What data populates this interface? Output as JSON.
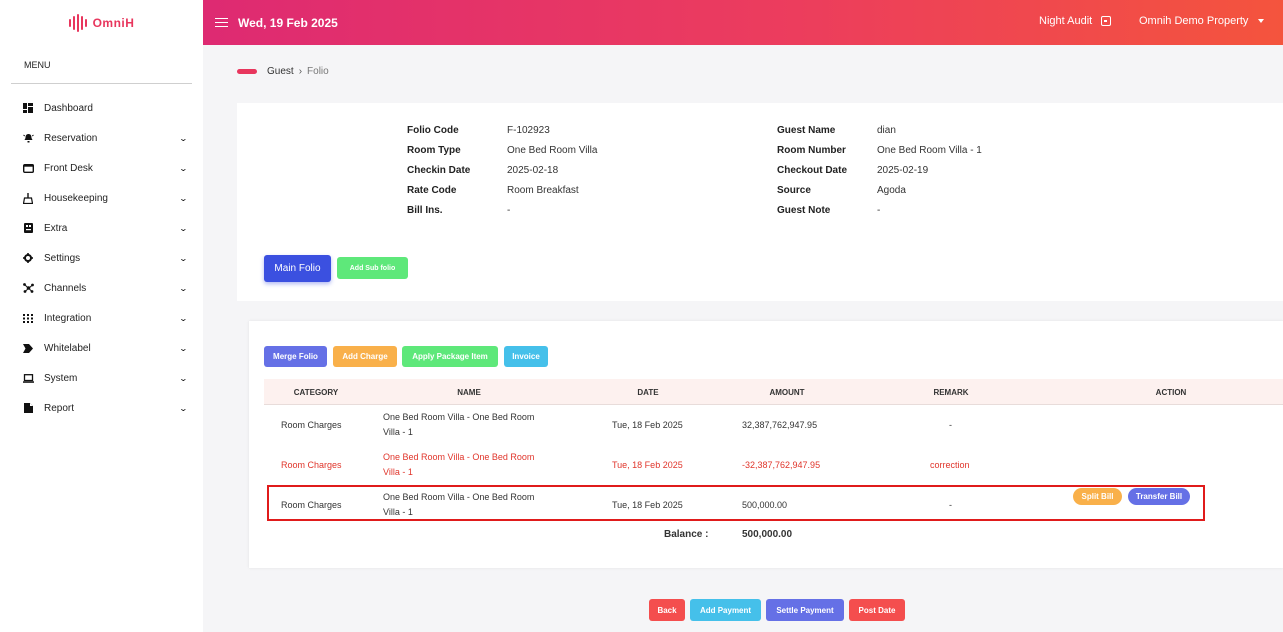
{
  "brand": {
    "name": "OmniH",
    "color": "#e8365d"
  },
  "sidebar": {
    "menu_title": "MENU",
    "items": [
      {
        "label": "Dashboard",
        "icon": "dashboard-icon",
        "has_children": false
      },
      {
        "label": "Reservation",
        "icon": "bell-icon",
        "has_children": true
      },
      {
        "label": "Front Desk",
        "icon": "front-desk-icon",
        "has_children": true
      },
      {
        "label": "Housekeeping",
        "icon": "broom-icon",
        "has_children": true
      },
      {
        "label": "Extra",
        "icon": "extra-icon",
        "has_children": true
      },
      {
        "label": "Settings",
        "icon": "gear-icon",
        "has_children": true
      },
      {
        "label": "Channels",
        "icon": "network-icon",
        "has_children": true
      },
      {
        "label": "Integration",
        "icon": "grid-icon",
        "has_children": true
      },
      {
        "label": "Whitelabel",
        "icon": "label-icon",
        "has_children": true
      },
      {
        "label": "System",
        "icon": "laptop-icon",
        "has_children": true
      },
      {
        "label": "Report",
        "icon": "report-icon",
        "has_children": true
      }
    ]
  },
  "header": {
    "date": "Wed, 19 Feb 2025",
    "night_audit": "Night Audit",
    "property": "Omnih Demo Property"
  },
  "breadcrumb": {
    "parent": "Guest",
    "current": "Folio"
  },
  "folio_info": {
    "left": [
      {
        "label": "Folio Code",
        "value": "F-102923"
      },
      {
        "label": "Room Type",
        "value": "One Bed Room Villa"
      },
      {
        "label": "Checkin Date",
        "value": "2025-02-18"
      },
      {
        "label": "Rate Code",
        "value": "Room Breakfast"
      },
      {
        "label": "Bill Ins.",
        "value": "-"
      }
    ],
    "right": [
      {
        "label": "Guest Name",
        "value": "dian"
      },
      {
        "label": "Room Number",
        "value": "One Bed Room Villa - 1"
      },
      {
        "label": "Checkout Date",
        "value": "2025-02-19"
      },
      {
        "label": "Source",
        "value": "Agoda"
      },
      {
        "label": "Guest Note",
        "value": "-"
      }
    ]
  },
  "folio_tabs": {
    "main": "Main Folio",
    "add_sub": "Add Sub folio"
  },
  "actions": {
    "merge": "Merge Folio",
    "add_charge": "Add Charge",
    "apply_package": "Apply Package Item",
    "invoice": "Invoice"
  },
  "table": {
    "headers": {
      "category": "CATEGORY",
      "name": "NAME",
      "date": "DATE",
      "amount": "AMOUNT",
      "remark": "REMARK",
      "action": "ACTION"
    },
    "rows": [
      {
        "category": "Room Charges",
        "name": "One Bed Room Villa - One Bed Room Villa - 1",
        "date": "Tue, 18 Feb 2025",
        "amount": "32,387,762,947.95",
        "remark": "-"
      },
      {
        "category": "Room Charges",
        "name": "One Bed Room Villa - One Bed Room Villa - 1",
        "date": "Tue, 18 Feb 2025",
        "amount": "-32,387,762,947.95",
        "remark": "correction"
      },
      {
        "category": "Room Charges",
        "name": "One Bed Room Villa - One Bed Room Villa - 1",
        "date": "Tue, 18 Feb 2025",
        "amount": "500,000.00",
        "remark": "-",
        "split_bill": "Split Bill",
        "transfer_bill": "Transfer Bill"
      }
    ],
    "balance_label": "Balance :",
    "balance_value": "500,000.00"
  },
  "footer_actions": {
    "back": "Back",
    "add_payment": "Add Payment",
    "settle_payment": "Settle Payment",
    "post_date": "Post Date"
  },
  "colors": {
    "primary_blue": "#3b50e0",
    "green": "#5ee87a",
    "indigo": "#6570e6",
    "orange": "#f9b04a",
    "teal": "#45c0ea",
    "red": "#f44e4e",
    "correction_red": "#e0352b"
  }
}
